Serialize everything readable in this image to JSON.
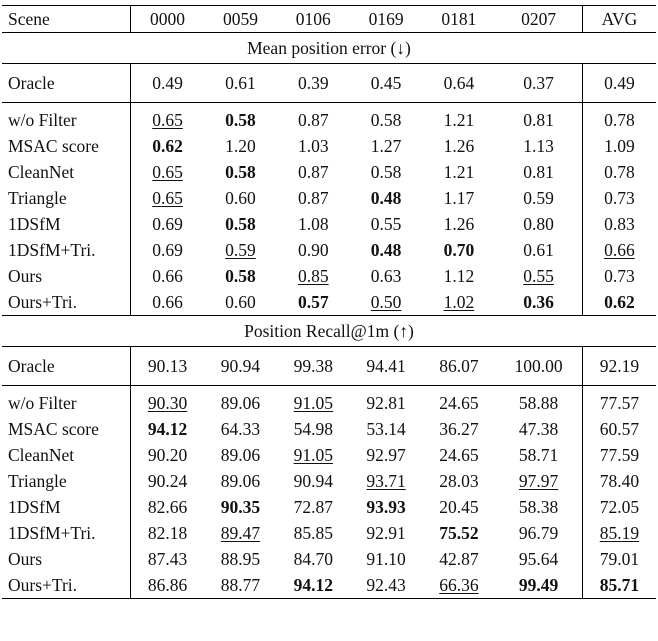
{
  "header": [
    "Scene",
    "0000",
    "0059",
    "0106",
    "0169",
    "0181",
    "0207",
    "AVG"
  ],
  "sections": [
    {
      "title": "Mean position error (↓)",
      "oracle": {
        "name": "Oracle",
        "values": [
          "0.49",
          "0.61",
          "0.39",
          "0.45",
          "0.64",
          "0.37",
          "0.49"
        ]
      },
      "rows": [
        {
          "name": "w/o Filter",
          "values": [
            "0.65",
            "0.58",
            "0.87",
            "0.58",
            "1.21",
            "0.81",
            "0.78"
          ],
          "styles": [
            "u",
            "b",
            "",
            "",
            "",
            "",
            ""
          ]
        },
        {
          "name": "MSAC score",
          "values": [
            "0.62",
            "1.20",
            "1.03",
            "1.27",
            "1.26",
            "1.13",
            "1.09"
          ],
          "styles": [
            "b",
            "",
            "",
            "",
            "",
            "",
            ""
          ]
        },
        {
          "name": "CleanNet",
          "values": [
            "0.65",
            "0.58",
            "0.87",
            "0.58",
            "1.21",
            "0.81",
            "0.78"
          ],
          "styles": [
            "u",
            "b",
            "",
            "",
            "",
            "",
            ""
          ]
        },
        {
          "name": "Triangle",
          "values": [
            "0.65",
            "0.60",
            "0.87",
            "0.48",
            "1.17",
            "0.59",
            "0.73"
          ],
          "styles": [
            "u",
            "",
            "",
            "b",
            "",
            "",
            ""
          ]
        },
        {
          "name": "1DSfM",
          "values": [
            "0.69",
            "0.58",
            "1.08",
            "0.55",
            "1.26",
            "0.80",
            "0.83"
          ],
          "styles": [
            "",
            "b",
            "",
            "",
            "",
            "",
            ""
          ]
        },
        {
          "name": "1DSfM+Tri.",
          "values": [
            "0.69",
            "0.59",
            "0.90",
            "0.48",
            "0.70",
            "0.61",
            "0.66"
          ],
          "styles": [
            "",
            "u",
            "",
            "b",
            "b",
            "",
            "u"
          ]
        },
        {
          "name": "Ours",
          "values": [
            "0.66",
            "0.58",
            "0.85",
            "0.63",
            "1.12",
            "0.55",
            "0.73"
          ],
          "styles": [
            "",
            "b",
            "u",
            "",
            "",
            "u",
            ""
          ]
        },
        {
          "name": "Ours+Tri.",
          "values": [
            "0.66",
            "0.60",
            "0.57",
            "0.50",
            "1.02",
            "0.36",
            "0.62"
          ],
          "styles": [
            "",
            "",
            "b",
            "u",
            "u",
            "b",
            "b"
          ]
        }
      ]
    },
    {
      "title": "Position Recall@1m (↑)",
      "oracle": {
        "name": "Oracle",
        "values": [
          "90.13",
          "90.94",
          "99.38",
          "94.41",
          "86.07",
          "100.00",
          "92.19"
        ]
      },
      "rows": [
        {
          "name": "w/o Filter",
          "values": [
            "90.30",
            "89.06",
            "91.05",
            "92.81",
            "24.65",
            "58.88",
            "77.57"
          ],
          "styles": [
            "u",
            "",
            "u",
            "",
            "",
            "",
            ""
          ]
        },
        {
          "name": "MSAC score",
          "values": [
            "94.12",
            "64.33",
            "54.98",
            "53.14",
            "36.27",
            "47.38",
            "60.57"
          ],
          "styles": [
            "b",
            "",
            "",
            "",
            "",
            "",
            ""
          ]
        },
        {
          "name": "CleanNet",
          "values": [
            "90.20",
            "89.06",
            "91.05",
            "92.97",
            "24.65",
            "58.71",
            "77.59"
          ],
          "styles": [
            "",
            "",
            "u",
            "",
            "",
            "",
            ""
          ]
        },
        {
          "name": "Triangle",
          "values": [
            "90.24",
            "89.06",
            "90.94",
            "93.71",
            "28.03",
            "97.97",
            "78.40"
          ],
          "styles": [
            "",
            "",
            "",
            "u",
            "",
            "u",
            ""
          ]
        },
        {
          "name": "1DSfM",
          "values": [
            "82.66",
            "90.35",
            "72.87",
            "93.93",
            "20.45",
            "58.38",
            "72.05"
          ],
          "styles": [
            "",
            "b",
            "",
            "b",
            "",
            "",
            ""
          ]
        },
        {
          "name": "1DSfM+Tri.",
          "values": [
            "82.18",
            "89.47",
            "85.85",
            "92.91",
            "75.52",
            "96.79",
            "85.19"
          ],
          "styles": [
            "",
            "u",
            "",
            "",
            "b",
            "",
            "u"
          ]
        },
        {
          "name": "Ours",
          "values": [
            "87.43",
            "88.95",
            "84.70",
            "91.10",
            "42.87",
            "95.64",
            "79.01"
          ],
          "styles": [
            "",
            "",
            "",
            "",
            "",
            "",
            ""
          ]
        },
        {
          "name": "Ours+Tri.",
          "values": [
            "86.86",
            "88.77",
            "94.12",
            "92.43",
            "66.36",
            "99.49",
            "85.71"
          ],
          "styles": [
            "",
            "",
            "b",
            "",
            "u",
            "b",
            "b"
          ]
        }
      ]
    }
  ]
}
